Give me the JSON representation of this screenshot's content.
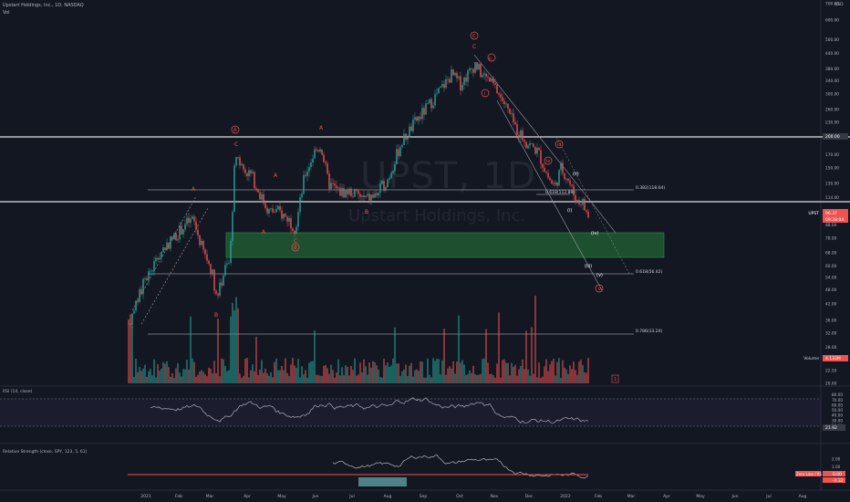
{
  "header": {
    "title": "Upstart Holdings, Inc., 1D, NASDAQ",
    "vol_label": "Vol",
    "currency": "USD"
  },
  "watermark": {
    "symbol": "UPST, 1D",
    "name": "Upstart Holdings, Inc."
  },
  "colors": {
    "background": "#131722",
    "up": "#26a69a",
    "down": "#ef5350",
    "line": "#d1d4dc",
    "zone": "#1e5a32",
    "rsi_line": "#b2b5be",
    "rs_line": "#b2b5be"
  },
  "price_axis": {
    "ticks": [
      "700.00",
      "600.00",
      "500.00",
      "440.00",
      "380.00",
      "340.00",
      "300.00",
      "260.00",
      "230.00",
      "200.00",
      "170.00",
      "150.00",
      "130.00",
      "114.00",
      "100.00",
      "88.00",
      "78.00",
      "68.00",
      "60.00",
      "54.00",
      "48.00",
      "42.00",
      "36.00",
      "32.00",
      "28.00",
      "25.00",
      "22.50",
      "20.00"
    ],
    "labels": {
      "upst": "UPST",
      "upst_price": "96.37",
      "upst_change": "09:28:04",
      "volume": "Volume",
      "volume_value": "4.133M",
      "price_tag_200": "200.00",
      "price_tag_95": "95.02"
    }
  },
  "time_axis": [
    "2021",
    "Feb",
    "Mar",
    "Apr",
    "May",
    "Jun",
    "Jul",
    "Aug",
    "Sep",
    "Oct",
    "Nov",
    "Dec",
    "2022",
    "Feb",
    "Mar",
    "Apr",
    "May",
    "Jun",
    "Jul",
    "Aug"
  ],
  "annotations": {
    "fib_levels": [
      {
        "label": "0.382(118.64)"
      },
      {
        "label": "0.618(112.89)"
      },
      {
        "label": "0.618(56.42)"
      },
      {
        "label": "0.786(33.24)"
      }
    ],
    "wave_labels": [
      "A",
      "B",
      "A",
      "C",
      "B",
      "A",
      "B",
      "C",
      "C",
      "A",
      "B",
      "C",
      "A",
      "B",
      "(i)",
      "(ii)",
      "(iii)",
      "(iv)",
      "(v)",
      "i",
      "ii",
      "iii",
      "iv",
      "v",
      "B",
      "1"
    ],
    "circled": [
      "A",
      "B",
      "C",
      "A",
      "B",
      "C",
      "i",
      "iii"
    ]
  },
  "rsi": {
    "label": "RSI (14, close)",
    "ticks": [
      "80.00",
      "70.00",
      "60.00",
      "50.00",
      "40.00",
      "30.00",
      "20.00"
    ],
    "value": "21.92"
  },
  "rs": {
    "label": "Relative Strength (close, SPY, 123, 5, 61)",
    "ticks": [
      "2.00",
      "1.00",
      "0.00"
    ],
    "zero_label": "Zero Line / RS Trend",
    "value1": "0.00",
    "value2": "-0.32"
  },
  "chart_data": {
    "type": "candlestick",
    "title": "Upstart Holdings, Inc., 1D, NASDAQ",
    "x": [
      "2021-01",
      "2021-02",
      "2021-03",
      "2021-04",
      "2021-05",
      "2021-06",
      "2021-07",
      "2021-08",
      "2021-09",
      "2021-10",
      "2021-11",
      "2021-12",
      "2022-01"
    ],
    "close": [
      44,
      90,
      52,
      135,
      88,
      150,
      122,
      190,
      330,
      380,
      260,
      150,
      96
    ],
    "horizontal_lines": [
      200,
      112.89,
      118.64,
      56.42,
      33.24
    ],
    "zone": [
      70,
      86
    ],
    "yscale": "log",
    "ylim": [
      20,
      700
    ]
  }
}
